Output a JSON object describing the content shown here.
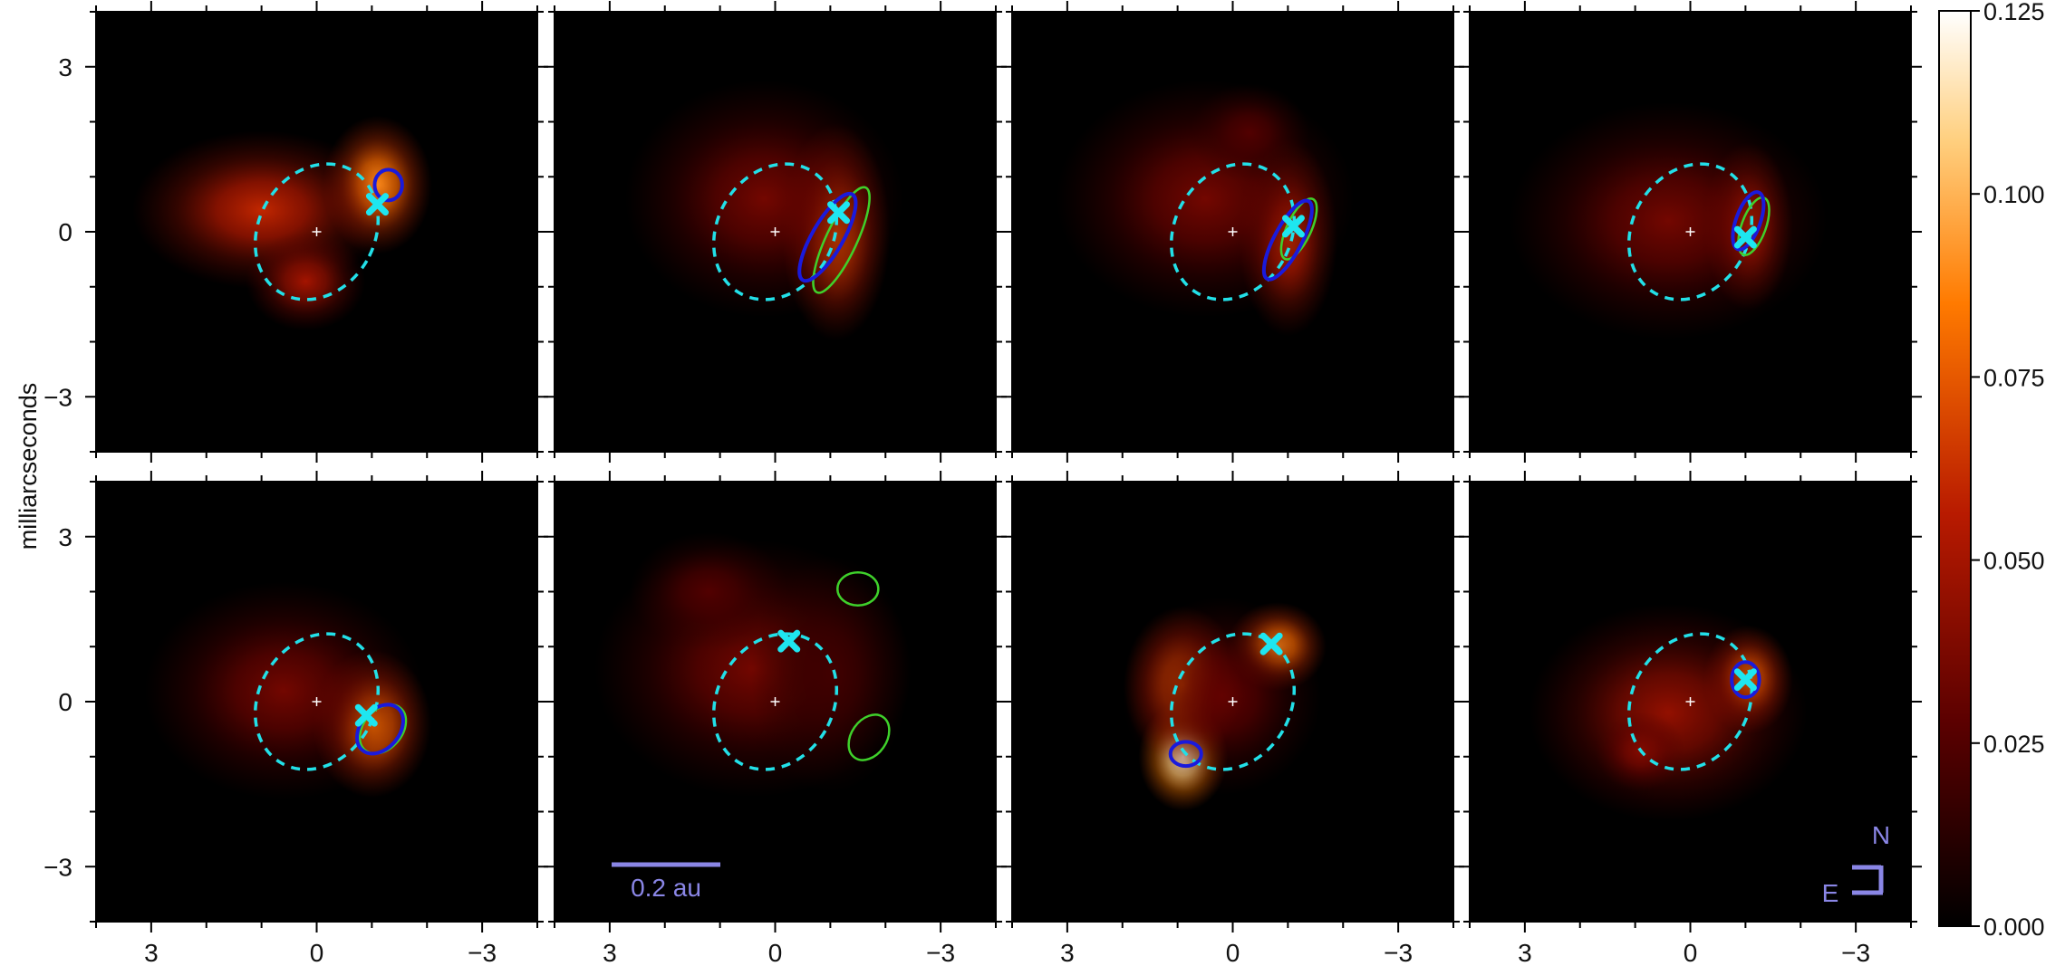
{
  "figure": {
    "y_axis_label": "milliarcseconds",
    "scalebar_label": "0.2 au",
    "compass_north": "N",
    "compass_east": "E",
    "colors": {
      "orbit": "#22e0e8",
      "ellipse_blue": "#1a1adc",
      "ellipse_green": "#3fd12b",
      "marker": "#1ee6f0",
      "annotation": "#8a86e6"
    }
  },
  "chart_data": {
    "type": "heatmap",
    "grid": "2x4",
    "x_unit": "milliarcseconds",
    "y_unit": "milliarcseconds",
    "xlim": [
      4,
      -4
    ],
    "ylim": [
      -4,
      4
    ],
    "x_ticks": [
      3,
      0,
      -3
    ],
    "x_tick_labels": [
      "3",
      "0",
      "−3"
    ],
    "y_ticks": [
      3,
      0,
      -3
    ],
    "y_tick_labels": [
      "3",
      "0",
      "−3"
    ],
    "colorbar": {
      "range": [
        0,
        0.125
      ],
      "ticks": [
        0,
        0.025,
        0.05,
        0.075,
        0.1,
        0.125
      ],
      "tick_labels": [
        "0.000",
        "0.025",
        "0.050",
        "0.075",
        "0.100",
        "0.125"
      ],
      "colormap": [
        "#000000",
        "#5a0000",
        "#b81a00",
        "#ff7a00",
        "#ffd080",
        "#ffffff"
      ]
    },
    "orbit_ellipse": {
      "cx": 0,
      "cy": 0,
      "rx": 1.05,
      "ry": 1.12,
      "angle": 30
    },
    "panels": [
      {
        "blobs": [
          {
            "x": -1.1,
            "y": 0.85,
            "sx": 0.55,
            "sy": 0.7,
            "amp": 0.09
          },
          {
            "x": 1.0,
            "y": 0.4,
            "sx": 1.3,
            "sy": 0.8,
            "amp": 0.06
          },
          {
            "x": 0.2,
            "y": -0.9,
            "sx": 0.6,
            "sy": 0.5,
            "amp": 0.05
          }
        ],
        "marker": {
          "x": -1.1,
          "y": 0.5
        },
        "blue": {
          "x": -1.3,
          "y": 0.85,
          "rx": 0.25,
          "ry": 0.28,
          "angle": 0
        },
        "green": null
      },
      {
        "blobs": [
          {
            "x": -1.1,
            "y": 0.0,
            "sx": 0.55,
            "sy": 1.1,
            "amp": 0.075
          },
          {
            "x": 0.2,
            "y": 0.6,
            "sx": 1.4,
            "sy": 1.2,
            "amp": 0.035
          }
        ],
        "marker": {
          "x": -1.15,
          "y": 0.35
        },
        "blue": {
          "x": -0.95,
          "y": -0.1,
          "rx": 0.28,
          "ry": 0.9,
          "angle": 30
        },
        "green": {
          "x": -1.2,
          "y": -0.15,
          "rx": 0.28,
          "ry": 1.05,
          "angle": 25
        }
      },
      {
        "blobs": [
          {
            "x": -1.0,
            "y": -0.1,
            "sx": 0.5,
            "sy": 1.0,
            "amp": 0.065
          },
          {
            "x": 0.5,
            "y": 0.6,
            "sx": 1.5,
            "sy": 1.2,
            "amp": 0.035
          },
          {
            "x": -0.3,
            "y": 1.8,
            "sx": 0.6,
            "sy": 0.5,
            "amp": 0.025
          }
        ],
        "marker": {
          "x": -1.1,
          "y": 0.1
        },
        "blue": {
          "x": -1.0,
          "y": -0.15,
          "rx": 0.25,
          "ry": 0.8,
          "angle": 28
        },
        "green": {
          "x": -1.2,
          "y": 0.05,
          "rx": 0.22,
          "ry": 0.6,
          "angle": 25
        }
      },
      {
        "blobs": [
          {
            "x": -1.05,
            "y": 0.1,
            "sx": 0.45,
            "sy": 0.85,
            "amp": 0.065
          },
          {
            "x": 0.4,
            "y": 0.2,
            "sx": 1.6,
            "sy": 1.2,
            "amp": 0.035
          }
        ],
        "marker": {
          "x": -1.0,
          "y": -0.1
        },
        "blue": {
          "x": -1.05,
          "y": 0.2,
          "rx": 0.22,
          "ry": 0.55,
          "angle": 20
        },
        "green": {
          "x": -1.15,
          "y": 0.1,
          "rx": 0.22,
          "ry": 0.55,
          "angle": 20
        }
      },
      {
        "blobs": [
          {
            "x": -1.0,
            "y": -0.4,
            "sx": 0.6,
            "sy": 0.75,
            "amp": 0.085
          },
          {
            "x": 0.6,
            "y": 0.2,
            "sx": 1.4,
            "sy": 1.1,
            "amp": 0.035
          }
        ],
        "marker": {
          "x": -0.9,
          "y": -0.25
        },
        "blue": {
          "x": -1.15,
          "y": -0.5,
          "rx": 0.35,
          "ry": 0.5,
          "angle": 40
        },
        "green": {
          "x": -1.2,
          "y": -0.5,
          "rx": 0.35,
          "ry": 0.5,
          "angle": 40
        }
      },
      {
        "blobs": [
          {
            "x": 0.4,
            "y": 0.6,
            "sx": 1.6,
            "sy": 1.3,
            "amp": 0.035
          },
          {
            "x": 1.2,
            "y": 2.0,
            "sx": 0.8,
            "sy": 0.6,
            "amp": 0.025
          },
          {
            "x": -1.0,
            "y": 0.5,
            "sx": 0.8,
            "sy": 1.2,
            "amp": 0.02
          }
        ],
        "marker": {
          "x": -0.25,
          "y": 1.1
        },
        "blue": null,
        "green": [
          {
            "x": -1.5,
            "y": 2.05,
            "rx": 0.37,
            "ry": 0.3,
            "angle": 0
          },
          {
            "x": -1.7,
            "y": -0.65,
            "rx": 0.32,
            "ry": 0.45,
            "angle": 35
          }
        ]
      },
      {
        "blobs": [
          {
            "x": 0.9,
            "y": -1.0,
            "sx": 0.45,
            "sy": 0.55,
            "amp": 0.12
          },
          {
            "x": -0.8,
            "y": 1.0,
            "sx": 0.5,
            "sy": 0.45,
            "amp": 0.09
          },
          {
            "x": 0.9,
            "y": 0.3,
            "sx": 0.6,
            "sy": 0.8,
            "amp": 0.08
          },
          {
            "x": 0.2,
            "y": 0.1,
            "sx": 1.0,
            "sy": 1.0,
            "amp": 0.03
          }
        ],
        "marker": {
          "x": -0.7,
          "y": 1.05
        },
        "blue": {
          "x": 0.85,
          "y": -0.95,
          "rx": 0.28,
          "ry": 0.22,
          "angle": 0
        },
        "green": null
      },
      {
        "blobs": [
          {
            "x": -1.05,
            "y": 0.4,
            "sx": 0.45,
            "sy": 0.55,
            "amp": 0.085
          },
          {
            "x": 0.4,
            "y": -0.2,
            "sx": 1.4,
            "sy": 1.1,
            "amp": 0.045
          },
          {
            "x": 0.9,
            "y": -0.9,
            "sx": 0.45,
            "sy": 0.4,
            "amp": 0.04
          }
        ],
        "marker": {
          "x": -1.0,
          "y": 0.4
        },
        "blue": {
          "x": -1.0,
          "y": 0.4,
          "rx": 0.25,
          "ry": 0.32,
          "angle": 0
        },
        "green": null
      }
    ]
  }
}
